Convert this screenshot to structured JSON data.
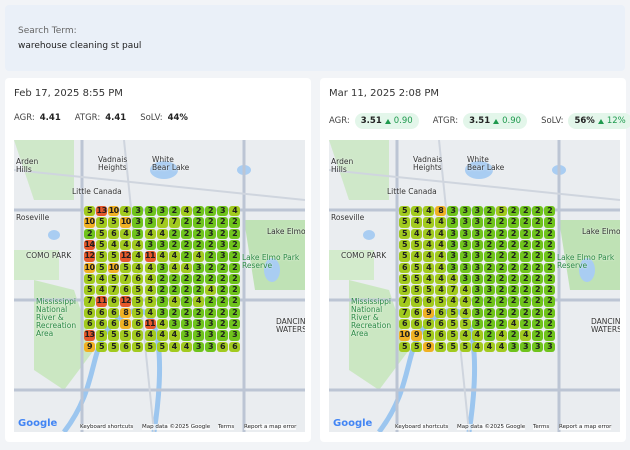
{
  "search": {
    "label": "Search Term:",
    "term": "warehouse cleaning st paul"
  },
  "map_labels": [
    "Arden Hills",
    "Vadnais Heights",
    "White Bear Lake",
    "Little Canada",
    "Roseville",
    "Lake Elmo",
    "Lake Elmo Park Reserve",
    "COMO PARK",
    "Mississippi National River & Recreation Area",
    "DANCING WATERS"
  ],
  "map_footer": [
    "Google",
    "Keyboard shortcuts",
    "Map data ©2025 Google",
    "Terms",
    "Report a map error"
  ],
  "reports": [
    {
      "date": "Feb 17, 2025 8:55 PM",
      "metrics": [
        {
          "label": "AGR:",
          "value": "4.41"
        },
        {
          "label": "ATGR:",
          "value": "4.41"
        },
        {
          "label": "SoLV:",
          "value": "44%"
        }
      ],
      "grid": [
        [
          5,
          13,
          10,
          4,
          3,
          3,
          3,
          2,
          4,
          2,
          2,
          3,
          4
        ],
        [
          10,
          5,
          5,
          10,
          3,
          3,
          7,
          7,
          2,
          2,
          2,
          2,
          2
        ],
        [
          2,
          5,
          6,
          4,
          3,
          4,
          4,
          2,
          2,
          2,
          3,
          2,
          2
        ],
        [
          14,
          5,
          4,
          4,
          4,
          3,
          3,
          2,
          2,
          2,
          2,
          3,
          2
        ],
        [
          12,
          5,
          5,
          12,
          4,
          11,
          4,
          4,
          2,
          4,
          2,
          3,
          2
        ],
        [
          10,
          5,
          10,
          5,
          4,
          4,
          3,
          4,
          4,
          3,
          2,
          2,
          2
        ],
        [
          5,
          4,
          5,
          7,
          6,
          4,
          2,
          2,
          2,
          2,
          2,
          2,
          2
        ],
        [
          5,
          4,
          7,
          6,
          5,
          4,
          2,
          2,
          2,
          2,
          4,
          2,
          2
        ],
        [
          7,
          11,
          6,
          12,
          5,
          5,
          3,
          4,
          2,
          4,
          2,
          2,
          2
        ],
        [
          6,
          6,
          6,
          8,
          5,
          4,
          3,
          2,
          2,
          2,
          2,
          2,
          2
        ],
        [
          6,
          6,
          6,
          8,
          6,
          11,
          4,
          3,
          3,
          3,
          3,
          2,
          2
        ],
        [
          13,
          5,
          5,
          5,
          6,
          4,
          4,
          4,
          3,
          3,
          3,
          2,
          3
        ],
        [
          9,
          5,
          5,
          6,
          5,
          5,
          5,
          4,
          4,
          3,
          3,
          6,
          6
        ]
      ]
    },
    {
      "date": "Mar 11, 2025 2:08 PM",
      "metrics": [
        {
          "label": "AGR:",
          "value": "3.51",
          "change": "0.90"
        },
        {
          "label": "ATGR:",
          "value": "3.51",
          "change": "0.90"
        },
        {
          "label": "SoLV:",
          "value": "56%",
          "change": "12%"
        }
      ],
      "grid": [
        [
          5,
          4,
          4,
          8,
          3,
          3,
          3,
          2,
          5,
          2,
          2,
          2,
          2
        ],
        [
          5,
          4,
          4,
          4,
          3,
          3,
          3,
          2,
          2,
          2,
          2,
          2,
          2
        ],
        [
          5,
          4,
          4,
          4,
          3,
          3,
          3,
          2,
          2,
          2,
          2,
          2,
          2
        ],
        [
          5,
          5,
          4,
          4,
          3,
          3,
          3,
          2,
          2,
          2,
          2,
          2,
          2
        ],
        [
          5,
          4,
          4,
          4,
          3,
          3,
          3,
          2,
          2,
          2,
          2,
          2,
          2
        ],
        [
          6,
          5,
          4,
          4,
          3,
          3,
          3,
          2,
          2,
          2,
          2,
          2,
          2
        ],
        [
          5,
          5,
          4,
          4,
          4,
          3,
          3,
          2,
          2,
          2,
          2,
          2,
          2
        ],
        [
          5,
          5,
          5,
          4,
          7,
          4,
          3,
          3,
          2,
          2,
          2,
          2,
          2
        ],
        [
          7,
          6,
          6,
          5,
          4,
          4,
          2,
          2,
          2,
          2,
          2,
          2,
          2
        ],
        [
          7,
          6,
          9,
          6,
          5,
          4,
          3,
          2,
          2,
          2,
          2,
          2,
          2
        ],
        [
          6,
          6,
          6,
          6,
          5,
          5,
          3,
          2,
          2,
          4,
          2,
          2,
          2
        ],
        [
          10,
          9,
          5,
          6,
          5,
          4,
          4,
          2,
          4,
          2,
          4,
          2,
          2
        ],
        [
          5,
          5,
          9,
          5,
          5,
          5,
          4,
          4,
          4,
          3,
          3,
          3,
          3
        ]
      ]
    }
  ]
}
